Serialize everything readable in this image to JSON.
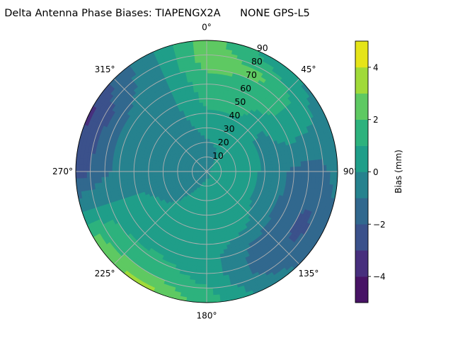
{
  "chart_data": {
    "type": "heatmap",
    "subtype": "polar-filled-contour",
    "title": "Delta Antenna Phase Biases: TIAPENGX2A      NONE GPS-L5",
    "theta_zero": "north",
    "theta_direction": "clockwise",
    "theta_tick_labels": [
      "0°",
      "45°",
      "90°",
      "135°",
      "180°",
      "225°",
      "270°",
      "315°"
    ],
    "r_tick_labels": [
      "10",
      "20",
      "30",
      "40",
      "50",
      "60",
      "70",
      "80",
      "90"
    ],
    "rlim": [
      0,
      90
    ],
    "grid": true,
    "colormap": "viridis",
    "levels": [
      -5,
      -4,
      -3,
      -2,
      -1,
      0,
      1,
      2,
      3,
      4,
      5
    ],
    "level_colors": [
      "#471365",
      "#472f7d",
      "#3b518b",
      "#31688e",
      "#26828e",
      "#1f9e89",
      "#2db27d",
      "#5ec962",
      "#a0da39",
      "#e5e419"
    ],
    "colorbar": {
      "label": "Bias (mm)",
      "tick_labels": [
        "−4",
        "−2",
        "0",
        "2",
        "4"
      ],
      "ticks": [
        -4,
        -2,
        0,
        2,
        4
      ],
      "range": [
        -5,
        5
      ]
    },
    "grid_azimuths": [
      0,
      30,
      60,
      90,
      120,
      150,
      180,
      210,
      240,
      270,
      300,
      330
    ],
    "grid_radii": [
      0,
      15,
      30,
      45,
      60,
      75,
      90
    ],
    "values_by_azimuth": [
      [
        -0.1,
        -0.3,
        0.3,
        1.1,
        1.6,
        2.4,
        2.6
      ],
      [
        -0.1,
        0.0,
        0.5,
        1.1,
        1.5,
        2.2,
        0.5
      ],
      [
        -0.1,
        0.3,
        0.3,
        -0.3,
        0.8,
        0.5,
        -0.5
      ],
      [
        -0.1,
        0.3,
        0.3,
        -0.4,
        -1.2,
        -1.5,
        -0.6
      ],
      [
        -0.1,
        0.3,
        0.3,
        -0.5,
        -1.5,
        -2.3,
        -1.5
      ],
      [
        -0.1,
        0.3,
        0.4,
        0.3,
        -1.2,
        -1.5,
        -0.5
      ],
      [
        -0.1,
        0.2,
        0.4,
        0.5,
        0.5,
        0.8,
        1.5
      ],
      [
        -0.1,
        0.0,
        0.3,
        0.5,
        0.7,
        1.5,
        3.5
      ],
      [
        -0.1,
        -0.3,
        -0.3,
        0.3,
        0.5,
        1.2,
        2.3
      ],
      [
        -0.1,
        -0.4,
        -0.5,
        -0.5,
        -0.7,
        -1.5,
        -2.8
      ],
      [
        -0.1,
        -0.4,
        -0.5,
        -0.5,
        -0.6,
        -2.0,
        -3.2
      ],
      [
        -0.1,
        -0.4,
        -0.4,
        -0.4,
        -0.3,
        -0.5,
        -0.5
      ]
    ]
  }
}
